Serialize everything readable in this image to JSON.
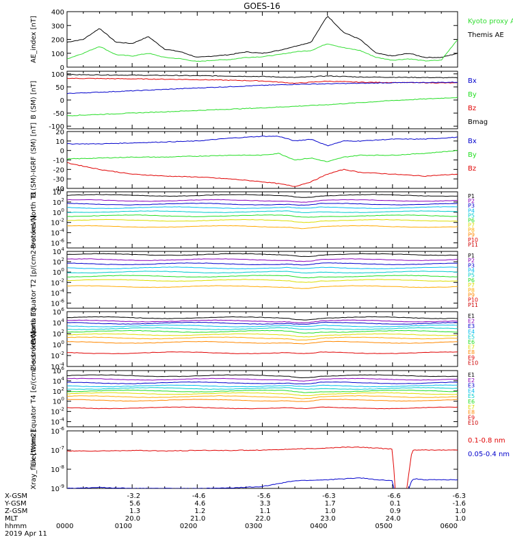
{
  "title": "GOES-16",
  "x_ticks": [
    "0000",
    "0100",
    "0200",
    "0300",
    "0400",
    "0500",
    "0600"
  ],
  "footer": {
    "labels": [
      "X-GSM",
      "Y-GSM",
      "Z-GSM",
      "MLT",
      "hhmm",
      "2019 Apr 11"
    ],
    "rows": [
      [
        "",
        "-3.2",
        "-4.6",
        "-5.6",
        "-6.3",
        "-6.6",
        "-6.3"
      ],
      [
        "",
        "5.6",
        "4.6",
        "3.3",
        "1.7",
        "0.1",
        "-1.6"
      ],
      [
        "",
        "1.3",
        "1.2",
        "1.1",
        "1.0",
        "0.9",
        "1.0"
      ],
      [
        "",
        "20.0",
        "21.0",
        "22.0",
        "23.0",
        "24.0",
        "1.0"
      ],
      [
        "0000",
        "0100",
        "0200",
        "0300",
        "0400",
        "0500",
        "0600"
      ]
    ]
  },
  "colors": {
    "black": "#000000",
    "red": "#e00000",
    "green": "#22dd22",
    "blue": "#0000cc",
    "lightgreen": "#33ee33",
    "cyan": "#00bbee",
    "teal": "#00cccc",
    "yellow": "#dddd00",
    "orange": "#ff8800",
    "purple": "#8800bb",
    "navy": "#000088"
  },
  "chart_data": [
    {
      "type": "line",
      "ylabel": "AE_index [nT]",
      "ylim": [
        0,
        400
      ],
      "yticks": [
        "0",
        "100",
        "200",
        "300",
        "400"
      ],
      "legend": [
        {
          "name": "Kyoto proxy AE",
          "color": "#33dd33"
        },
        {
          "name": "Themis AE",
          "color": "#000000"
        }
      ],
      "x": [
        0,
        0.25,
        0.5,
        0.75,
        1,
        1.25,
        1.5,
        1.75,
        2,
        2.25,
        2.5,
        2.75,
        3,
        3.25,
        3.5,
        3.75,
        4,
        4.25,
        4.5,
        4.75,
        5,
        5.25,
        5.5,
        5.75,
        6
      ],
      "series": [
        {
          "name": "Themis AE",
          "color": "#000000",
          "values": [
            180,
            200,
            280,
            180,
            170,
            220,
            130,
            110,
            70,
            80,
            90,
            110,
            100,
            120,
            150,
            180,
            370,
            250,
            200,
            100,
            80,
            100,
            70,
            70,
            100
          ]
        },
        {
          "name": "Kyoto proxy AE",
          "color": "#33dd33",
          "values": [
            60,
            100,
            150,
            90,
            80,
            100,
            70,
            60,
            40,
            50,
            55,
            70,
            75,
            90,
            110,
            120,
            170,
            140,
            120,
            70,
            50,
            60,
            45,
            50,
            200
          ]
        }
      ]
    },
    {
      "type": "line",
      "ylabel": "B (SM) [nT]",
      "ylim": [
        -110,
        110
      ],
      "yticks": [
        "-100",
        "-50",
        "0",
        "50",
        "100"
      ],
      "legend": [
        {
          "name": "Bx",
          "color": "#0000cc"
        },
        {
          "name": "By",
          "color": "#22dd22"
        },
        {
          "name": "Bz",
          "color": "#e00000"
        },
        {
          "name": "Bmag",
          "color": "#000000"
        }
      ],
      "x": [
        0,
        1,
        2,
        3,
        3.5,
        4,
        4.5,
        5,
        6
      ],
      "series": [
        {
          "name": "Bmag",
          "color": "#000000",
          "values": [
            97,
            95,
            93,
            90,
            86,
            92,
            88,
            87,
            85
          ]
        },
        {
          "name": "Bz",
          "color": "#e00000",
          "values": [
            83,
            81,
            78,
            73,
            64,
            72,
            68,
            67,
            65
          ]
        },
        {
          "name": "Bx",
          "color": "#0000cc",
          "values": [
            25,
            35,
            46,
            56,
            60,
            62,
            64,
            66,
            68
          ]
        },
        {
          "name": "By",
          "color": "#22dd22",
          "values": [
            -60,
            -50,
            -40,
            -30,
            -24,
            -18,
            -10,
            -2,
            10
          ]
        }
      ]
    },
    {
      "type": "line",
      "ylabel": "B (SM)-IGRF (SM) [nT]",
      "ylim": [
        -40,
        20
      ],
      "yticks": [
        "-40",
        "-30",
        "-20",
        "-10",
        "0",
        "10",
        "20"
      ],
      "legend": [
        {
          "name": "Bx",
          "color": "#0000cc"
        },
        {
          "name": "By",
          "color": "#22dd22"
        },
        {
          "name": "Bz",
          "color": "#e00000"
        }
      ],
      "x": [
        0,
        0.5,
        1,
        1.5,
        2,
        2.5,
        3,
        3.25,
        3.5,
        3.75,
        4,
        4.25,
        4.5,
        5,
        5.5,
        6
      ],
      "series": [
        {
          "name": "Bx",
          "color": "#0000cc",
          "values": [
            7,
            7,
            8,
            9,
            10,
            13,
            15,
            15,
            10,
            12,
            5,
            10,
            10,
            12,
            12,
            14
          ]
        },
        {
          "name": "By",
          "color": "#22dd22",
          "values": [
            -9,
            -8,
            -7,
            -7,
            -6,
            -5,
            -5,
            -3,
            -10,
            -8,
            -12,
            -7,
            -5,
            -5,
            -3,
            0
          ]
        },
        {
          "name": "Bz",
          "color": "#e00000",
          "values": [
            -13,
            -20,
            -25,
            -27,
            -28,
            -30,
            -33,
            -35,
            -38,
            -33,
            -25,
            -20,
            -23,
            -25,
            -27,
            -25
          ]
        }
      ]
    },
    {
      "type": "line",
      "ylabel": "Protons North T1",
      "yscale": "log",
      "ylim": [
        -7,
        4
      ],
      "yticks": [
        {
          "b": "10",
          "e": "4",
          "v": 4
        },
        {
          "b": "10",
          "e": "2",
          "v": 2
        },
        {
          "b": "10",
          "e": "0",
          "v": 0
        },
        {
          "b": "10",
          "e": "-2",
          "v": -2
        },
        {
          "b": "10",
          "e": "-4",
          "v": -4
        },
        {
          "b": "10",
          "e": "-6",
          "v": -6
        }
      ],
      "legend": [
        {
          "name": "P1",
          "color": "#000000"
        },
        {
          "name": "P2",
          "color": "#8800bb"
        },
        {
          "name": "P3",
          "color": "#0000cc"
        },
        {
          "name": "P4",
          "color": "#00bbee"
        },
        {
          "name": "P5",
          "color": "#00cccc"
        },
        {
          "name": "P6",
          "color": "#22dd22"
        },
        {
          "name": "P7",
          "color": "#dddd00"
        },
        {
          "name": "P8",
          "color": "#ffaa00"
        },
        {
          "name": "P9",
          "color": "#ff8800"
        },
        {
          "name": "P10",
          "color": "#e00000"
        },
        {
          "name": "P11",
          "color": "#cc0000"
        }
      ],
      "levels": [
        3.3,
        2.3,
        1.6,
        0.9,
        0.1,
        -0.7,
        -1.6,
        -2.8
      ],
      "level_colors": [
        "#000000",
        "#8800bb",
        "#0000cc",
        "#00bbee",
        "#00cccc",
        "#22dd22",
        "#dddd00",
        "#ffaa00"
      ]
    },
    {
      "type": "line",
      "ylabel": "Protons Equator T2 [p/(cm2-s-sr-keV)]",
      "yscale": "log",
      "ylim": [
        -7,
        4
      ],
      "yticks": [
        {
          "b": "10",
          "e": "4",
          "v": 4
        },
        {
          "b": "10",
          "e": "2",
          "v": 2
        },
        {
          "b": "10",
          "e": "0",
          "v": 0
        },
        {
          "b": "10",
          "e": "-2",
          "v": -2
        },
        {
          "b": "10",
          "e": "-4",
          "v": -4
        },
        {
          "b": "10",
          "e": "-6",
          "v": -6
        }
      ],
      "legend": [
        {
          "name": "P1",
          "color": "#000000"
        },
        {
          "name": "P2",
          "color": "#8800bb"
        },
        {
          "name": "P3",
          "color": "#0000cc"
        },
        {
          "name": "P4",
          "color": "#00bbee"
        },
        {
          "name": "P5",
          "color": "#00cccc"
        },
        {
          "name": "P6",
          "color": "#22dd22"
        },
        {
          "name": "P7",
          "color": "#dddd00"
        },
        {
          "name": "P8",
          "color": "#ffaa00"
        },
        {
          "name": "P9",
          "color": "#ff8800"
        },
        {
          "name": "P10",
          "color": "#e00000"
        },
        {
          "name": "P11",
          "color": "#cc0000"
        }
      ],
      "levels": [
        3.4,
        2.4,
        1.6,
        0.8,
        0,
        -0.8,
        -1.6,
        -2.8
      ],
      "level_colors": [
        "#000000",
        "#8800bb",
        "#0000cc",
        "#00bbee",
        "#00cccc",
        "#22dd22",
        "#dddd00",
        "#ffaa00"
      ]
    },
    {
      "type": "line",
      "ylabel": "Electrons North T3",
      "yscale": "log",
      "ylim": [
        -4,
        6
      ],
      "yticks": [
        {
          "b": "10",
          "e": "6",
          "v": 6
        },
        {
          "b": "10",
          "e": "4",
          "v": 4
        },
        {
          "b": "10",
          "e": "2",
          "v": 2
        },
        {
          "b": "10",
          "e": "0",
          "v": 0
        },
        {
          "b": "10",
          "e": "-2",
          "v": -2
        },
        {
          "b": "10",
          "e": "-4",
          "v": -4
        }
      ],
      "legend": [
        {
          "name": "E1",
          "color": "#000000"
        },
        {
          "name": "E2",
          "color": "#8800bb"
        },
        {
          "name": "E3",
          "color": "#0000cc"
        },
        {
          "name": "E4",
          "color": "#00bbee"
        },
        {
          "name": "E5",
          "color": "#00cccc"
        },
        {
          "name": "E6",
          "color": "#22dd22"
        },
        {
          "name": "E7",
          "color": "#dddd00"
        },
        {
          "name": "E8",
          "color": "#ff8800"
        },
        {
          "name": "E9",
          "color": "#e00000"
        },
        {
          "name": "E10",
          "color": "#cc0000"
        }
      ],
      "levels": [
        4.9,
        4.3,
        3.9,
        3.4,
        2.9,
        2.4,
        1.8,
        1.2,
        0.4,
        -1.5
      ],
      "level_colors": [
        "#000000",
        "#8800bb",
        "#0000cc",
        "#00bbee",
        "#00cccc",
        "#22dd22",
        "#dddd00",
        "#ffaa00",
        "#ff8800",
        "#e00000"
      ]
    },
    {
      "type": "line",
      "ylabel": "Electrons Equator T4 [e/(cm2-s-sr-keV)]",
      "yscale": "log",
      "ylim": [
        -5,
        6
      ],
      "yticks": [
        {
          "b": "10",
          "e": "6",
          "v": 6
        },
        {
          "b": "10",
          "e": "4",
          "v": 4
        },
        {
          "b": "10",
          "e": "2",
          "v": 2
        },
        {
          "b": "10",
          "e": "0",
          "v": 0
        },
        {
          "b": "10",
          "e": "-2",
          "v": -2
        },
        {
          "b": "10",
          "e": "-4",
          "v": -4
        }
      ],
      "legend": [
        {
          "name": "E1",
          "color": "#000000"
        },
        {
          "name": "E2",
          "color": "#8800bb"
        },
        {
          "name": "E3",
          "color": "#0000cc"
        },
        {
          "name": "E4",
          "color": "#00bbee"
        },
        {
          "name": "E5",
          "color": "#00cccc"
        },
        {
          "name": "E6",
          "color": "#22dd22"
        },
        {
          "name": "E7",
          "color": "#dddd00"
        },
        {
          "name": "E8",
          "color": "#ff8800"
        },
        {
          "name": "E9",
          "color": "#e00000"
        },
        {
          "name": "E10",
          "color": "#cc0000"
        }
      ],
      "levels": [
        5.0,
        4.3,
        3.6,
        3.0,
        2.5,
        2.0,
        1.5,
        0.9,
        0.2,
        -1.3
      ],
      "level_colors": [
        "#000000",
        "#8800bb",
        "#0000cc",
        "#00bbee",
        "#00cccc",
        "#22dd22",
        "#dddd00",
        "#ffaa00",
        "#ff8800",
        "#e00000"
      ]
    },
    {
      "type": "line",
      "ylabel": "Xray_flux [W/m2]",
      "yscale": "log",
      "ylim": [
        -9,
        -6
      ],
      "yticks": [
        {
          "b": "10",
          "e": "-6",
          "v": -6
        },
        {
          "b": "10",
          "e": "-7",
          "v": -7
        },
        {
          "b": "10",
          "e": "-8",
          "v": -8
        },
        {
          "b": "10",
          "e": "-9",
          "v": -9
        }
      ],
      "legend": [
        {
          "name": "0.1-0.8 nm",
          "color": "#e00000"
        },
        {
          "name": "0.05-0.4 nm",
          "color": "#0000cc"
        }
      ],
      "x": [
        0,
        0.5,
        1,
        1.5,
        2,
        2.5,
        3,
        3.5,
        4,
        4.25,
        4.5,
        4.75,
        5.0,
        5.05,
        5.2,
        5.3,
        5.35,
        5.5,
        6
      ],
      "series": [
        {
          "name": "0.1-0.8 nm",
          "color": "#e00000",
          "values": [
            -7.05,
            -7.05,
            -7.02,
            -7.05,
            -7.02,
            -7.02,
            -7.0,
            -6.95,
            -6.9,
            -6.85,
            -6.85,
            -6.9,
            -6.95,
            -9.5,
            -9.5,
            -7.0,
            -7.0,
            -7.0,
            -7.0
          ]
        },
        {
          "name": "0.05-0.4 nm",
          "color": "#0000cc",
          "values": [
            -9.0,
            -8.95,
            -9.0,
            -9.0,
            -9.0,
            -8.98,
            -8.9,
            -8.6,
            -8.55,
            -8.5,
            -8.45,
            -8.55,
            -8.6,
            -9.5,
            -9.5,
            -8.55,
            -8.5,
            -8.55,
            -8.55
          ]
        }
      ]
    }
  ]
}
